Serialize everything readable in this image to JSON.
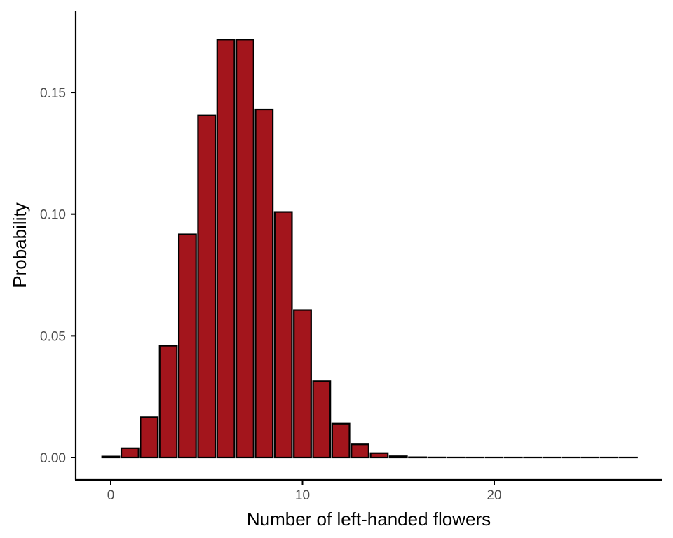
{
  "chart_data": {
    "type": "bar",
    "title": "",
    "xlabel": "Number of left-handed flowers",
    "ylabel": "Probability",
    "x": [
      0,
      1,
      2,
      3,
      4,
      5,
      6,
      7,
      8,
      9,
      10,
      11,
      12,
      13,
      14,
      15,
      16,
      17,
      18,
      19,
      20,
      21,
      22,
      23,
      24,
      25,
      26,
      27
    ],
    "values": [
      0.0004,
      0.0038,
      0.0166,
      0.0459,
      0.0917,
      0.1406,
      0.1718,
      0.1718,
      0.1431,
      0.1009,
      0.0606,
      0.0313,
      0.0139,
      0.0054,
      0.0018,
      0.0005,
      0.0001,
      3e-05,
      1e-05,
      0,
      0,
      0,
      0,
      0,
      0,
      0,
      0,
      0
    ],
    "xlim": [
      -0.5,
      27.5
    ],
    "ylim": [
      0,
      0.175
    ],
    "x_ticks": [
      0,
      10,
      20
    ],
    "y_ticks": [
      0,
      0.05,
      0.1,
      0.15
    ],
    "x_tick_labels": [
      "0",
      "10",
      "20"
    ],
    "y_tick_labels": [
      "0.00",
      "0.05",
      "0.10",
      "0.15"
    ],
    "grid": false,
    "legend": "none",
    "bar_fill": "#a3151c",
    "bar_stroke": "#000000"
  }
}
